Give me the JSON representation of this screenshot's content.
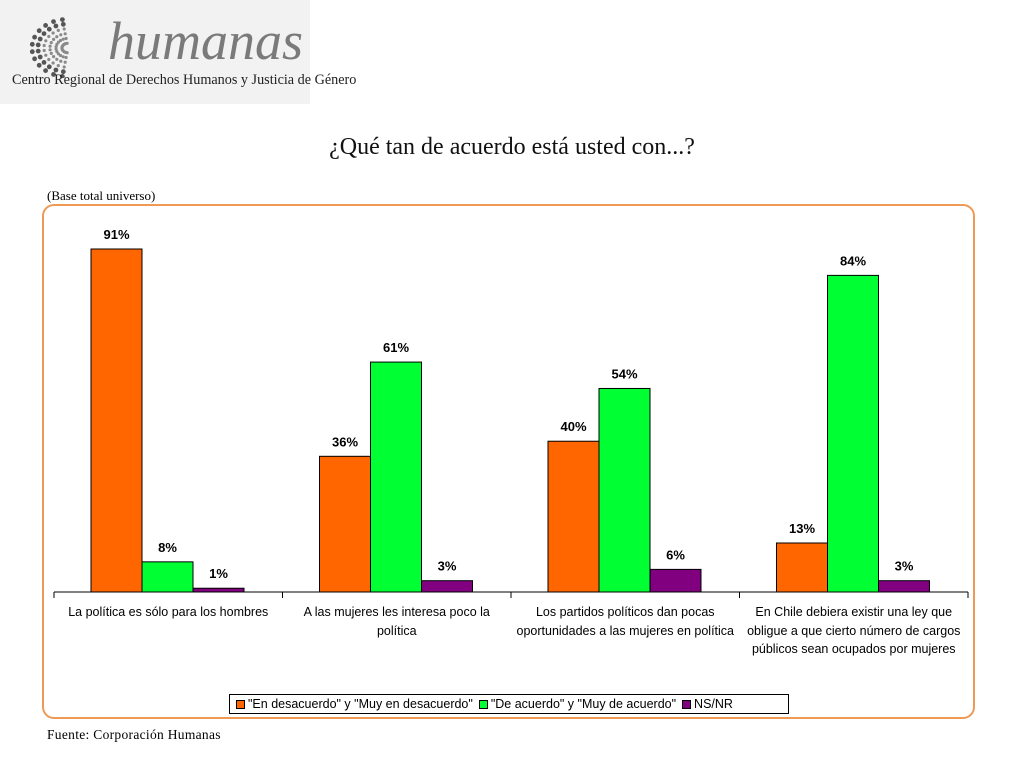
{
  "logo": {
    "wordmark": "humanas",
    "subtitle": "Centro Regional de Derechos Humanos y Justicia de Género"
  },
  "page": {
    "title": "¿Qué tan de acuerdo está usted con...?",
    "base_note": "(Base total universo)",
    "source": "Fuente: Corporación Humanas"
  },
  "chart_data": {
    "type": "bar",
    "title": "¿Qué tan de acuerdo está usted con...?",
    "xlabel": "",
    "ylabel": "",
    "ylim": [
      0,
      100
    ],
    "grid": false,
    "legend_position": "bottom",
    "categories": [
      "La política es sólo para los hombres",
      "A las mujeres les interesa poco la política",
      "Los partidos políticos dan pocas oportunidades a las mujeres en política",
      "En Chile debiera existir una ley que obligue a que cierto número de cargos públicos sean ocupados por mujeres"
    ],
    "series": [
      {
        "name": "\"En desacuerdo\" y \"Muy en desacuerdo\"",
        "color": "#ff6600",
        "values": [
          91,
          36,
          40,
          13
        ],
        "labels": [
          "91%",
          "36%",
          "40%",
          "13%"
        ]
      },
      {
        "name": "\"De acuerdo\" y \"Muy de acuerdo\"",
        "color": "#00ff33",
        "values": [
          8,
          61,
          54,
          84
        ],
        "labels": [
          "8%",
          "61%",
          "54%",
          "84%"
        ]
      },
      {
        "name": "NS/NR",
        "color": "#800080",
        "values": [
          1,
          3,
          6,
          3
        ],
        "labels": [
          "1%",
          "3%",
          "6%",
          "3%"
        ]
      }
    ]
  }
}
